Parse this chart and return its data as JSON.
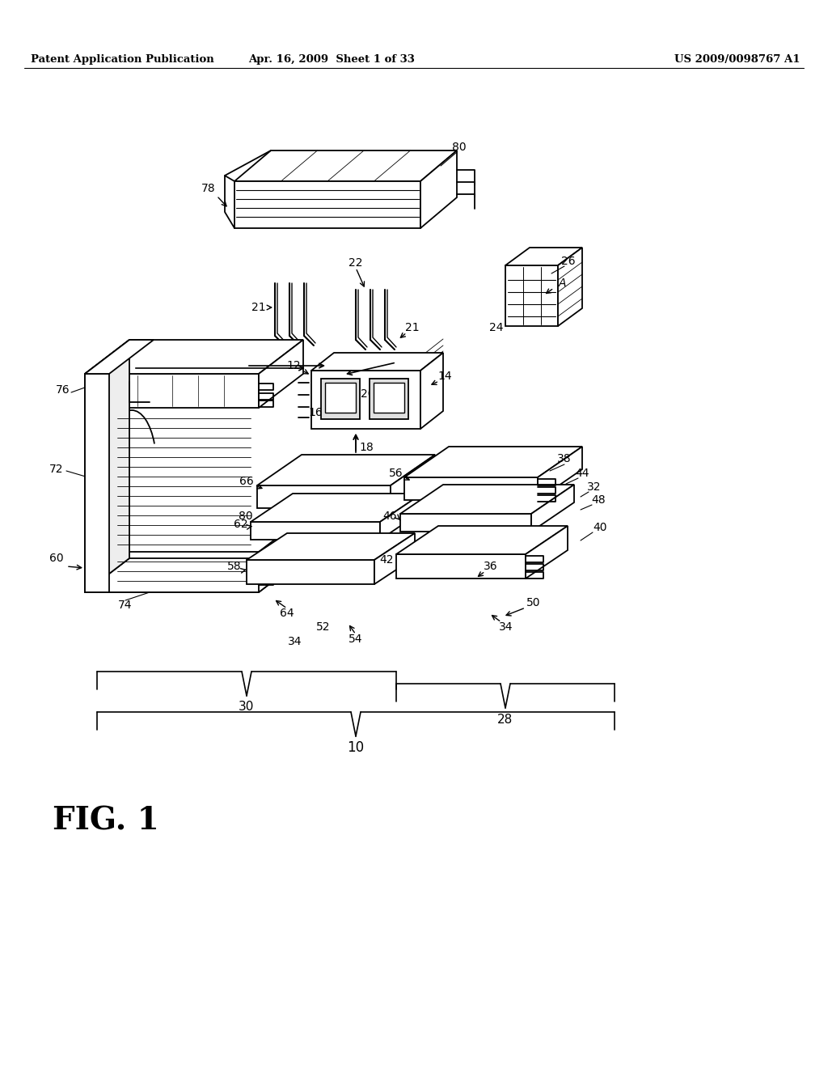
{
  "background_color": "#ffffff",
  "header_left": "Patent Application Publication",
  "header_center": "Apr. 16, 2009  Sheet 1 of 33",
  "header_right": "US 2009/0098767 A1",
  "fig_label": "FIG. 1",
  "line_color": "#000000",
  "line_width": 1.3
}
